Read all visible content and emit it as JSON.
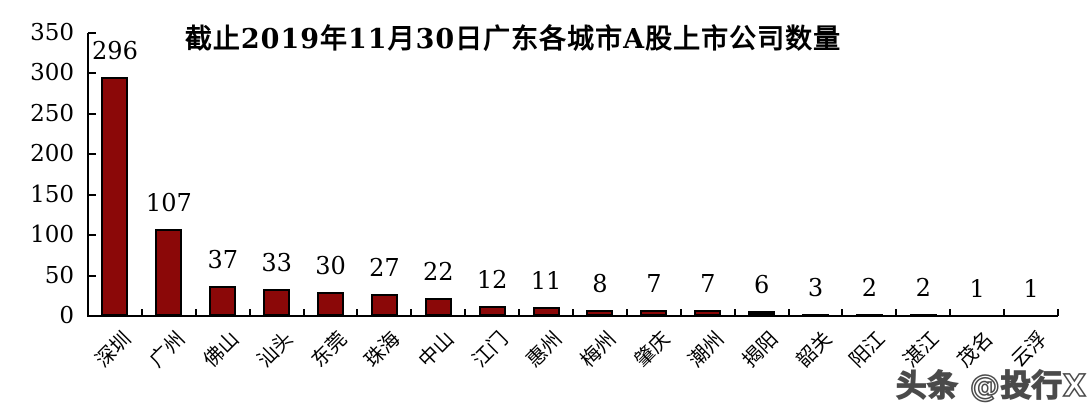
{
  "chart_data": {
    "type": "bar",
    "title": "截止2019年11月30日广东各城市A股上市公司数量",
    "categories": [
      "深圳",
      "广州",
      "佛山",
      "汕头",
      "东莞",
      "珠海",
      "中山",
      "江门",
      "惠州",
      "梅州",
      "肇庆",
      "潮州",
      "揭阳",
      "韶关",
      "阳江",
      "湛江",
      "茂名",
      "云浮"
    ],
    "values": [
      296,
      107,
      37,
      33,
      30,
      27,
      22,
      12,
      11,
      8,
      7,
      7,
      6,
      3,
      2,
      2,
      1,
      1
    ],
    "xlabel": "",
    "ylabel": "",
    "ylim": [
      0,
      350
    ],
    "ytick_step": 50,
    "grid": false,
    "legend": false,
    "bar_color": "#8B0808",
    "bar_border_color": "#000000",
    "text_color": "#000000"
  },
  "watermark": {
    "text": "头条 @投行X"
  }
}
